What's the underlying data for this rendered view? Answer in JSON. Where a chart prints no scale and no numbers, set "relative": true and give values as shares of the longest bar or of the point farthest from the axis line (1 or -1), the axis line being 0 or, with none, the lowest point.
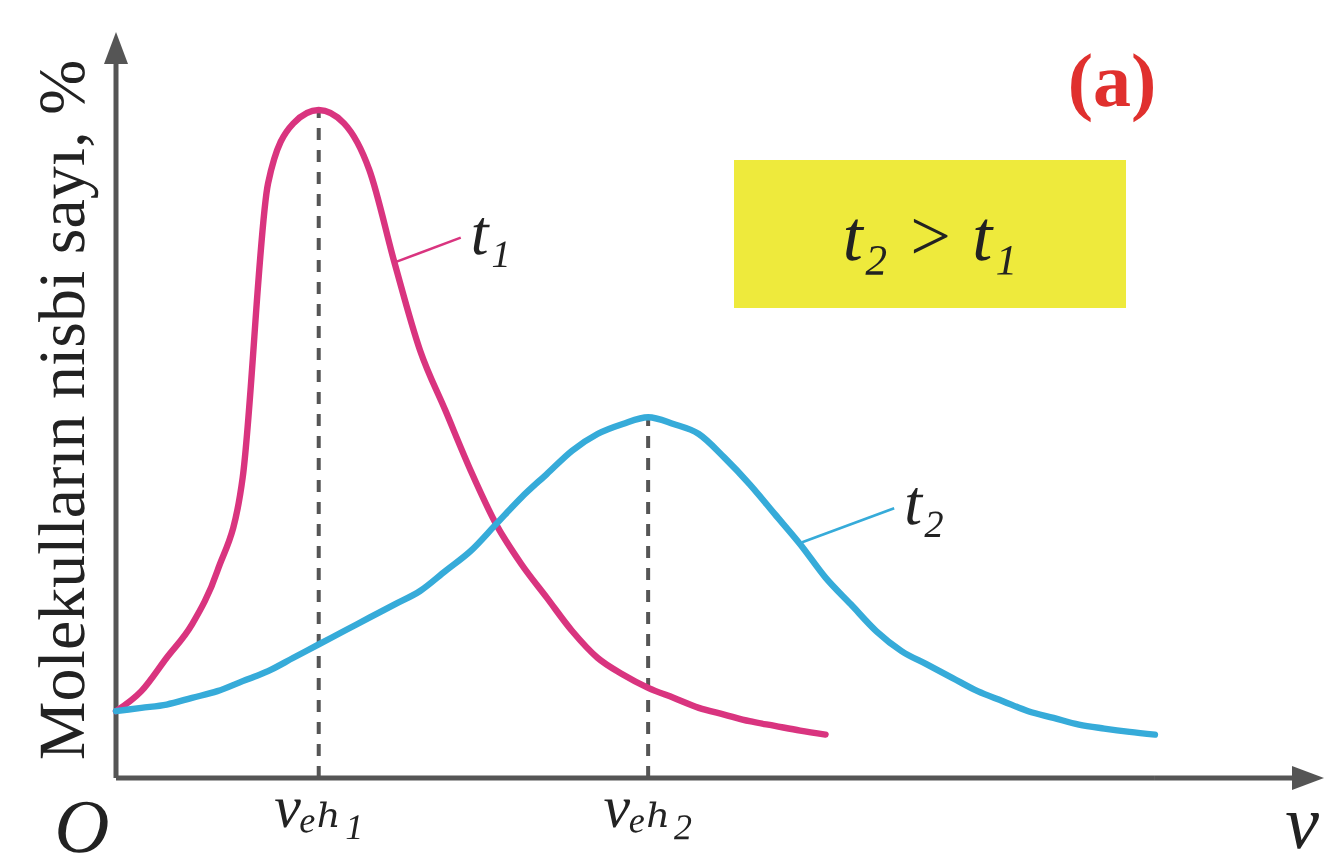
{
  "chart_data": {
    "type": "line",
    "title": "(a)",
    "xlabel": "v",
    "ylabel": "Molekulların nisbi sayı, %",
    "relative": true,
    "categories": [
      null,
      null,
      null,
      null,
      null,
      null,
      null,
      null,
      "vₑₕ₁",
      null,
      null,
      null,
      null,
      null,
      null,
      null,
      null,
      null,
      null,
      null,
      null,
      "vₑₕ₂",
      null,
      null,
      null,
      null,
      null,
      null,
      null,
      null,
      null,
      null,
      null,
      null,
      null,
      null,
      null,
      null,
      null,
      null,
      null,
      null
    ],
    "series": [
      {
        "name": "t₁",
        "color": "#d9347f",
        "values": [
          0.1,
          0.13,
          0.18,
          0.23,
          0.31,
          0.45,
          0.89,
          0.98,
          1,
          0.98,
          0.91,
          0.77,
          0.64,
          0.55,
          0.46,
          0.38,
          0.32,
          0.27,
          0.22,
          0.18,
          0.155,
          0.135,
          0.12,
          0.105,
          0.095,
          0.085,
          0.078,
          0.071,
          0.065,
          null,
          null,
          null,
          null,
          null,
          null,
          null,
          null,
          null,
          null,
          null,
          null,
          null
        ]
      },
      {
        "name": "t₂",
        "color": "#36abd9",
        "values": [
          0.1,
          0.105,
          0.11,
          0.12,
          0.13,
          0.145,
          0.16,
          0.18,
          0.2,
          0.22,
          0.24,
          0.26,
          0.28,
          0.31,
          0.34,
          0.38,
          0.42,
          0.455,
          0.49,
          0.515,
          0.53,
          0.54,
          0.53,
          0.515,
          0.48,
          0.44,
          0.395,
          0.35,
          0.3,
          0.26,
          0.22,
          0.19,
          0.17,
          0.15,
          0.13,
          0.115,
          0.1,
          0.09,
          0.08,
          0.074,
          0.069,
          0.065
        ]
      }
    ],
    "ref_lines": [
      {
        "axis": "x",
        "value": "vₑₕ₁",
        "color": "#555555",
        "line_style": "dashed"
      },
      {
        "axis": "x",
        "value": "vₑₕ₂",
        "color": "#555555",
        "line_style": "dashed"
      }
    ],
    "annotations": [
      "O",
      "t₂ > t₁"
    ],
    "legend": "center",
    "line_style": "solid"
  }
}
